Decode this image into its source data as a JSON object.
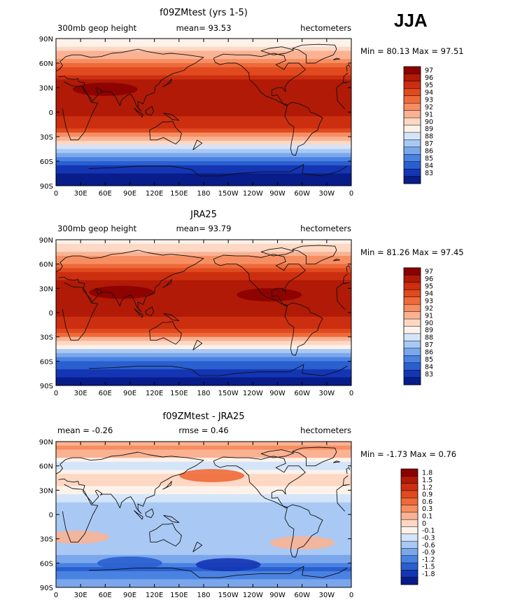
{
  "season": "JJA",
  "x_ticks": [
    "0",
    "30E",
    "60E",
    "90E",
    "120E",
    "150E",
    "180",
    "150W",
    "120W",
    "90W",
    "60W",
    "30W",
    "0"
  ],
  "y_ticks": [
    "90N",
    "60N",
    "30N",
    "0",
    "30S",
    "60S",
    "90S"
  ],
  "chart_data": [
    {
      "type": "heatmap",
      "title": "f09ZMtest (yrs 1-5)",
      "left_label": "300mb geop height",
      "center_label": "mean=   93.53",
      "right_label": "hectometers",
      "minmax_label": "Min =   80.13  Max =   97.51",
      "levels": [
        "97",
        "96",
        "95",
        "94",
        "93",
        "92",
        "91",
        "90",
        "89",
        "88",
        "87",
        "86",
        "85",
        "84",
        "83"
      ],
      "colors": [
        "#8b0000",
        "#b01a06",
        "#cc2e10",
        "#e04a1e",
        "#ee6a3a",
        "#f68e62",
        "#fab293",
        "#fdd8c4",
        "#fdf2ea",
        "#d4e5fa",
        "#a9c9f4",
        "#7aa7ec",
        "#4a82e2",
        "#2a5fd0",
        "#1435b4",
        "#081c8a"
      ],
      "zonal_profile": [
        {
          "lat": 90,
          "v": 89.2
        },
        {
          "lat": 80,
          "v": 90.0
        },
        {
          "lat": 70,
          "v": 91.6
        },
        {
          "lat": 60,
          "v": 93.0
        },
        {
          "lat": 50,
          "v": 94.6
        },
        {
          "lat": 40,
          "v": 95.9
        },
        {
          "lat": 30,
          "v": 96.7
        },
        {
          "lat": 20,
          "v": 96.6
        },
        {
          "lat": 10,
          "v": 96.3
        },
        {
          "lat": 0,
          "v": 96.1
        },
        {
          "lat": -10,
          "v": 95.8
        },
        {
          "lat": -20,
          "v": 94.8
        },
        {
          "lat": -30,
          "v": 92.2
        },
        {
          "lat": -40,
          "v": 89.4
        },
        {
          "lat": -50,
          "v": 86.8
        },
        {
          "lat": -60,
          "v": 84.8
        },
        {
          "lat": -70,
          "v": 83.3
        },
        {
          "lat": -80,
          "v": 82.5
        },
        {
          "lat": -90,
          "v": 82.0
        }
      ],
      "regional_features": [
        {
          "name": "asian-monsoon-anticyclone",
          "lon": 60,
          "lat": 28,
          "v": 97.3
        }
      ]
    },
    {
      "type": "heatmap",
      "title": "JRA25",
      "left_label": "300mb geop height",
      "center_label": "mean=   93.79",
      "right_label": "hectometers",
      "minmax_label": "Min =   81.26  Max =   97.45",
      "levels": [
        "97",
        "96",
        "95",
        "94",
        "93",
        "92",
        "91",
        "90",
        "89",
        "88",
        "87",
        "86",
        "85",
        "84",
        "83"
      ],
      "colors": [
        "#8b0000",
        "#b01a06",
        "#cc2e10",
        "#e04a1e",
        "#ee6a3a",
        "#f68e62",
        "#fab293",
        "#fdd8c4",
        "#fdf2ea",
        "#d4e5fa",
        "#a9c9f4",
        "#7aa7ec",
        "#4a82e2",
        "#2a5fd0",
        "#1435b4",
        "#081c8a"
      ],
      "zonal_profile": [
        {
          "lat": 90,
          "v": 89.5
        },
        {
          "lat": 80,
          "v": 90.3
        },
        {
          "lat": 70,
          "v": 91.8
        },
        {
          "lat": 60,
          "v": 93.2
        },
        {
          "lat": 50,
          "v": 94.8
        },
        {
          "lat": 40,
          "v": 96.0
        },
        {
          "lat": 30,
          "v": 96.8
        },
        {
          "lat": 20,
          "v": 96.7
        },
        {
          "lat": 10,
          "v": 96.4
        },
        {
          "lat": 0,
          "v": 96.2
        },
        {
          "lat": -10,
          "v": 95.9
        },
        {
          "lat": -20,
          "v": 95.0
        },
        {
          "lat": -30,
          "v": 92.6
        },
        {
          "lat": -40,
          "v": 89.7
        },
        {
          "lat": -50,
          "v": 87.2
        },
        {
          "lat": -60,
          "v": 85.2
        },
        {
          "lat": -70,
          "v": 83.8
        },
        {
          "lat": -80,
          "v": 83.0
        },
        {
          "lat": -90,
          "v": 82.6
        }
      ],
      "regional_features": [
        {
          "name": "asian-monsoon-anticyclone",
          "lon": 80,
          "lat": 25,
          "v": 97.2
        },
        {
          "name": "mexican-monsoon",
          "lon": -100,
          "lat": 22,
          "v": 97.1
        }
      ]
    },
    {
      "type": "heatmap",
      "title": "f09ZMtest - JRA25",
      "left_label": "mean =   -0.26",
      "center_label": "rmse =    0.46",
      "right_label": "hectometers",
      "minmax_label": "Min =   -1.73  Max =    0.76",
      "levels": [
        "1.8",
        "1.5",
        "1.2",
        "0.9",
        "0.6",
        "0.3",
        "0.1",
        "0",
        "-0.1",
        "-0.3",
        "-0.6",
        "-0.9",
        "-1.2",
        "-1.5",
        "-1.8"
      ],
      "colors": [
        "#8b0000",
        "#b01a06",
        "#cc2e10",
        "#e04a1e",
        "#ee6a3a",
        "#f68e62",
        "#fab293",
        "#fdd8c4",
        "#fdf2ea",
        "#d4e5fa",
        "#a9c9f4",
        "#7aa7ec",
        "#4a82e2",
        "#2a5fd0",
        "#1435b4",
        "#081c8a"
      ],
      "zonal_profile": [
        {
          "lat": 90,
          "v": 0.2
        },
        {
          "lat": 80,
          "v": 0.35
        },
        {
          "lat": 70,
          "v": 0.05
        },
        {
          "lat": 60,
          "v": -0.2
        },
        {
          "lat": 50,
          "v": 0.0
        },
        {
          "lat": 40,
          "v": 0.05
        },
        {
          "lat": 30,
          "v": -0.05
        },
        {
          "lat": 20,
          "v": -0.2
        },
        {
          "lat": 10,
          "v": -0.35
        },
        {
          "lat": 0,
          "v": -0.35
        },
        {
          "lat": -10,
          "v": -0.3
        },
        {
          "lat": -20,
          "v": -0.35
        },
        {
          "lat": -30,
          "v": -0.5
        },
        {
          "lat": -40,
          "v": -0.4
        },
        {
          "lat": -50,
          "v": -0.55
        },
        {
          "lat": -60,
          "v": -0.95
        },
        {
          "lat": -70,
          "v": -1.3
        },
        {
          "lat": -80,
          "v": -0.8
        },
        {
          "lat": -90,
          "v": -0.6
        }
      ],
      "regional_features": [
        {
          "name": "north-pacific-positive",
          "lon": -170,
          "lat": 48,
          "v": 0.7
        },
        {
          "name": "southern-ocean-negative",
          "lon": -150,
          "lat": -62,
          "v": -1.7
        },
        {
          "name": "south-indian-negative",
          "lon": 90,
          "lat": -60,
          "v": -1.4
        },
        {
          "name": "south-america-positive",
          "lon": -60,
          "lat": -35,
          "v": 0.1
        },
        {
          "name": "south-africa-positive",
          "lon": 25,
          "lat": -28,
          "v": 0.2
        }
      ]
    }
  ]
}
